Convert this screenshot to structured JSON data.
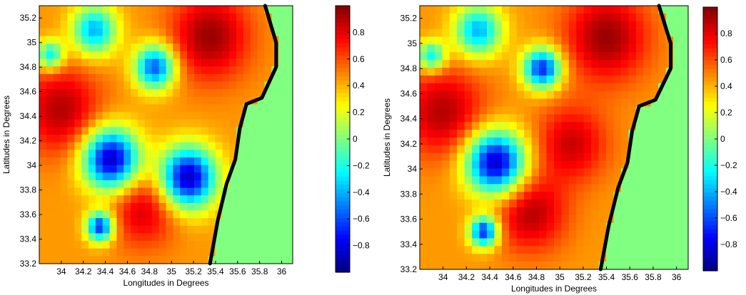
{
  "chart_data": [
    {
      "type": "heatmap",
      "title": "",
      "xlabel": "Longitudes in Degrees",
      "ylabel": "Latitudes in Degrees",
      "xlim": [
        33.8,
        36.1
      ],
      "ylim": [
        33.2,
        35.3
      ],
      "xticks": [
        34,
        34.2,
        34.4,
        34.6,
        34.8,
        35,
        35.2,
        35.4,
        35.6,
        35.8,
        36
      ],
      "yticks": [
        33.2,
        33.4,
        33.6,
        33.8,
        34,
        34.2,
        34.4,
        34.6,
        34.8,
        35,
        35.2
      ],
      "xtick_labels": [
        "34",
        "34.2",
        "34.4",
        "34.6",
        "34.8",
        "35",
        "35.2",
        "35.4",
        "35.6",
        "35.8",
        "36"
      ],
      "ytick_labels": [
        "33.2",
        "33.4",
        "33.6",
        "33.8",
        "34",
        "34.2",
        "34.4",
        "34.6",
        "34.8",
        "35",
        "35.2"
      ],
      "colorbar": {
        "range": [
          -1,
          1
        ],
        "ticks": [
          0.8,
          0.6,
          0.4,
          0.2,
          0,
          -0.2,
          -0.4,
          -0.6,
          -0.8
        ],
        "tick_labels": [
          "0.8",
          "0.6",
          "0.4",
          "0.2",
          "0",
          "−0.2",
          "−0.4",
          "−0.6",
          "−0.8"
        ],
        "colormap": "jet"
      },
      "sea_value": 0,
      "coastline": [
        [
          35.35,
          33.2
        ],
        [
          35.42,
          33.55
        ],
        [
          35.5,
          33.85
        ],
        [
          35.58,
          34.05
        ],
        [
          35.62,
          34.3
        ],
        [
          35.68,
          34.5
        ],
        [
          35.82,
          34.55
        ],
        [
          35.95,
          34.8
        ],
        [
          35.95,
          35.0
        ],
        [
          35.85,
          35.3
        ]
      ],
      "feature_blobs": [
        {
          "lon": 34.0,
          "lat": 34.45,
          "value": 0.9,
          "r": 0.35
        },
        {
          "lon": 35.35,
          "lat": 35.05,
          "value": 0.95,
          "r": 0.35
        },
        {
          "lon": 34.75,
          "lat": 33.65,
          "value": 0.85,
          "r": 0.3
        },
        {
          "lon": 34.45,
          "lat": 34.05,
          "value": -0.9,
          "r": 0.25
        },
        {
          "lon": 35.15,
          "lat": 33.9,
          "value": -0.9,
          "r": 0.25
        },
        {
          "lon": 34.35,
          "lat": 33.5,
          "value": -0.7,
          "r": 0.12
        },
        {
          "lon": 34.85,
          "lat": 34.8,
          "value": -0.6,
          "r": 0.18
        },
        {
          "lon": 34.3,
          "lat": 35.1,
          "value": -0.4,
          "r": 0.2
        },
        {
          "lon": 33.9,
          "lat": 34.9,
          "value": -0.3,
          "r": 0.12
        }
      ]
    },
    {
      "type": "heatmap",
      "title": "",
      "xlabel": "Longitudes in Degrees",
      "ylabel": "Latitudes in Degrees",
      "xlim": [
        33.8,
        36.1
      ],
      "ylim": [
        33.2,
        35.3
      ],
      "xticks": [
        34,
        34.2,
        34.4,
        34.6,
        34.8,
        35,
        35.2,
        35.4,
        35.6,
        35.8,
        36
      ],
      "yticks": [
        33.2,
        33.4,
        33.6,
        33.8,
        34,
        34.2,
        34.4,
        34.6,
        34.8,
        35,
        35.2
      ],
      "xtick_labels": [
        "34",
        "34.2",
        "34.4",
        "34.6",
        "34.8",
        "35",
        "35.2",
        "35.4",
        "35.6",
        "35.8",
        "36"
      ],
      "ytick_labels": [
        "33.2",
        "33.4",
        "33.6",
        "33.8",
        "34",
        "34.2",
        "34.4",
        "34.6",
        "34.8",
        "35",
        "35.2"
      ],
      "colorbar": {
        "range": [
          -1,
          1
        ],
        "ticks": [
          0.8,
          0.6,
          0.4,
          0.2,
          0,
          -0.2,
          -0.4,
          -0.6,
          -0.8
        ],
        "tick_labels": [
          "0.8",
          "0.6",
          "0.4",
          "0.2",
          "0",
          "−0.2",
          "−0.4",
          "−0.6",
          "−0.8"
        ],
        "colormap": "jet"
      },
      "sea_value": 0,
      "coastline": [
        [
          35.35,
          33.2
        ],
        [
          35.42,
          33.55
        ],
        [
          35.5,
          33.85
        ],
        [
          35.58,
          34.05
        ],
        [
          35.62,
          34.3
        ],
        [
          35.68,
          34.5
        ],
        [
          35.82,
          34.55
        ],
        [
          35.95,
          34.8
        ],
        [
          35.95,
          35.0
        ],
        [
          35.85,
          35.3
        ]
      ],
      "feature_blobs": [
        {
          "lon": 34.0,
          "lat": 34.45,
          "value": 0.9,
          "r": 0.35
        },
        {
          "lon": 35.4,
          "lat": 35.05,
          "value": 0.95,
          "r": 0.35
        },
        {
          "lon": 34.75,
          "lat": 33.65,
          "value": 0.9,
          "r": 0.3
        },
        {
          "lon": 35.1,
          "lat": 34.2,
          "value": 0.85,
          "r": 0.3
        },
        {
          "lon": 34.45,
          "lat": 34.05,
          "value": -0.9,
          "r": 0.25
        },
        {
          "lon": 34.35,
          "lat": 33.5,
          "value": -0.7,
          "r": 0.12
        },
        {
          "lon": 34.85,
          "lat": 34.8,
          "value": -0.7,
          "r": 0.16
        },
        {
          "lon": 34.3,
          "lat": 35.1,
          "value": -0.4,
          "r": 0.2
        },
        {
          "lon": 33.9,
          "lat": 34.9,
          "value": -0.3,
          "r": 0.12
        }
      ]
    }
  ]
}
